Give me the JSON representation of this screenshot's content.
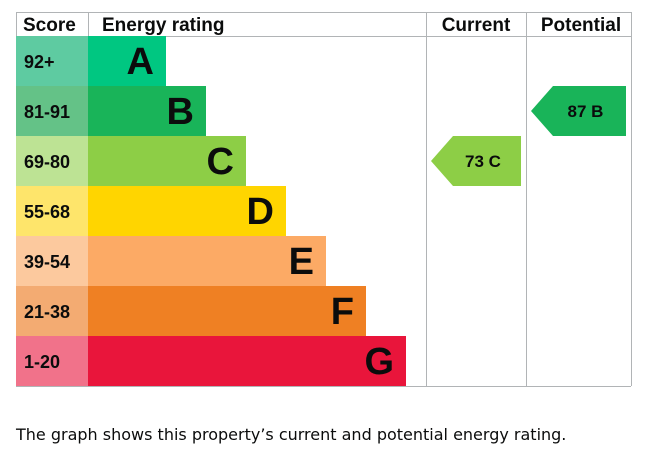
{
  "chart_data": {
    "type": "bar",
    "headers": {
      "score": "Score",
      "rating": "Energy rating",
      "current": "Current",
      "potential": "Potential"
    },
    "bands": [
      {
        "range": "92+",
        "letter": "A",
        "color": "#00c781",
        "score_color": "#5ecba1"
      },
      {
        "range": "81-91",
        "letter": "B",
        "color": "#19b459",
        "score_color": "#64c287"
      },
      {
        "range": "69-80",
        "letter": "C",
        "color": "#8dce46",
        "score_color": "#bde394"
      },
      {
        "range": "55-68",
        "letter": "D",
        "color": "#ffd500",
        "score_color": "#fee56b"
      },
      {
        "range": "39-54",
        "letter": "E",
        "color": "#fcaa65",
        "score_color": "#fcc99e"
      },
      {
        "range": "21-38",
        "letter": "F",
        "color": "#ef8023",
        "score_color": "#f3ab72"
      },
      {
        "range": "1-20",
        "letter": "G",
        "color": "#e9153b",
        "score_color": "#f1728a"
      }
    ],
    "current": {
      "value": 73,
      "letter": "C",
      "label": "73  C",
      "color": "#8dce46"
    },
    "potential": {
      "value": 87,
      "letter": "B",
      "label": "87  B",
      "color": "#19b459"
    }
  },
  "caption": "The graph shows this property’s current and potential energy rating."
}
